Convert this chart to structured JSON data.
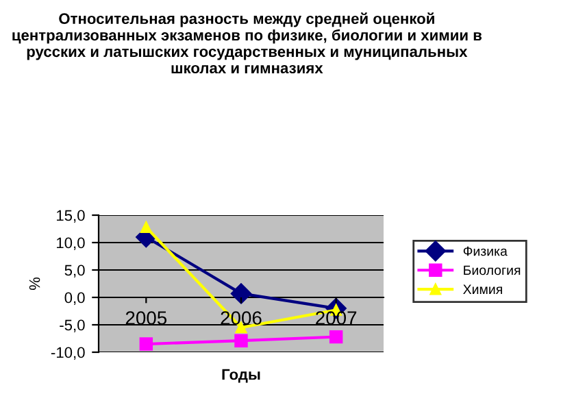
{
  "chart_data": {
    "type": "line",
    "title": "Относительная разность между средней оценкой централизованных экзаменов по физике, биологии и химии в русских и латышских государственных и муниципальных школах и гимназиях",
    "xlabel": "Годы",
    "ylabel": "%",
    "categories": [
      "2005",
      "2006",
      "2007"
    ],
    "series": [
      {
        "name": "Физика",
        "color": "#000080",
        "values": [
          11.0,
          0.7,
          -2.0
        ],
        "marker": "diamond"
      },
      {
        "name": "Биология",
        "color": "#ff00ff",
        "values": [
          -8.5,
          -7.9,
          -7.2
        ],
        "marker": "square"
      },
      {
        "name": "Химия",
        "color": "#ffff00",
        "values": [
          12.8,
          -5.5,
          -2.3
        ],
        "marker": "triangle"
      }
    ],
    "ylim": [
      -10,
      15
    ],
    "yticks": [
      {
        "value": -10,
        "label": "-10,0"
      },
      {
        "value": -5,
        "label": "-5,0"
      },
      {
        "value": 0,
        "label": "0,0"
      },
      {
        "value": 5,
        "label": "5,0"
      },
      {
        "value": 10,
        "label": "10,0"
      },
      {
        "value": 15,
        "label": "15,0"
      }
    ],
    "grid": "y",
    "legend": "right",
    "line_style": "solid"
  }
}
